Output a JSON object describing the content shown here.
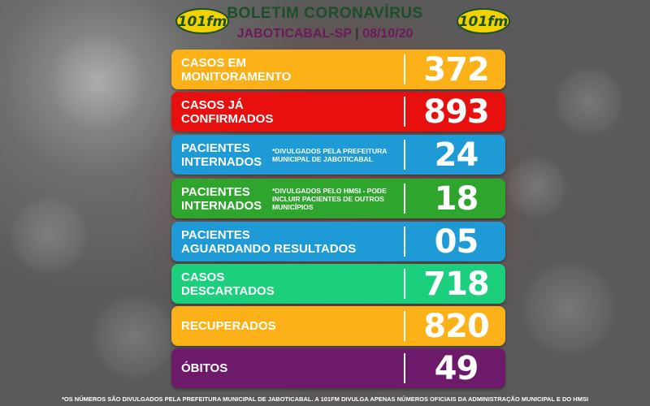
{
  "header": {
    "title": "BOLETIM CORONAVÍRUS",
    "city": "JABOTICABAL-SP",
    "separator": "|",
    "date": "08/10/20",
    "logo_text": "101fm"
  },
  "rows": [
    {
      "line1": "CASOS EM",
      "line2": "MONITORAMENTO",
      "note": "",
      "value": "372",
      "color": "#fbb117"
    },
    {
      "line1": "CASOS JÁ",
      "line2": "CONFIRMADOS",
      "note": "",
      "value": "893",
      "color": "#e80f0f"
    },
    {
      "line1": "PACIENTES",
      "line2": "INTERNADOS",
      "note": "*DIVULGADOS PELA PREFEITURA MUNICIPAL DE JABOTICABAL",
      "value": "24",
      "color": "#1e9bd7"
    },
    {
      "line1": "PACIENTES",
      "line2": "INTERNADOS",
      "note": "*DIVULGADOS PELO HMSI - PODE INCLUIR PACIENTES DE OUTROS MUNICÍPIOS",
      "value": "18",
      "color": "#2ea52c"
    },
    {
      "line1": "PACIENTES",
      "line2": "AGUARDANDO RESULTADOS",
      "note": "",
      "value": "05",
      "color": "#1e9bd7"
    },
    {
      "line1": "CASOS",
      "line2": "DESCARTADOS",
      "note": "",
      "value": "718",
      "color": "#1ccf7d"
    },
    {
      "line1": "RECUPERADOS",
      "line2": "",
      "note": "",
      "value": "820",
      "color": "#fbb117"
    },
    {
      "line1": "ÓBITOS",
      "line2": "",
      "note": "",
      "value": "49",
      "color": "#6e1a6a"
    }
  ],
  "footer": "*OS NÚMEROS SÃO DIVULGADOS PELA PREFEITURA MUNICIPAL DE JABOTICABAL. A 101FM DIVULGA APENAS NÚMEROS OFICIAIS DA ADMINISTRAÇÃO MUNICIPAL E DO HMSI"
}
